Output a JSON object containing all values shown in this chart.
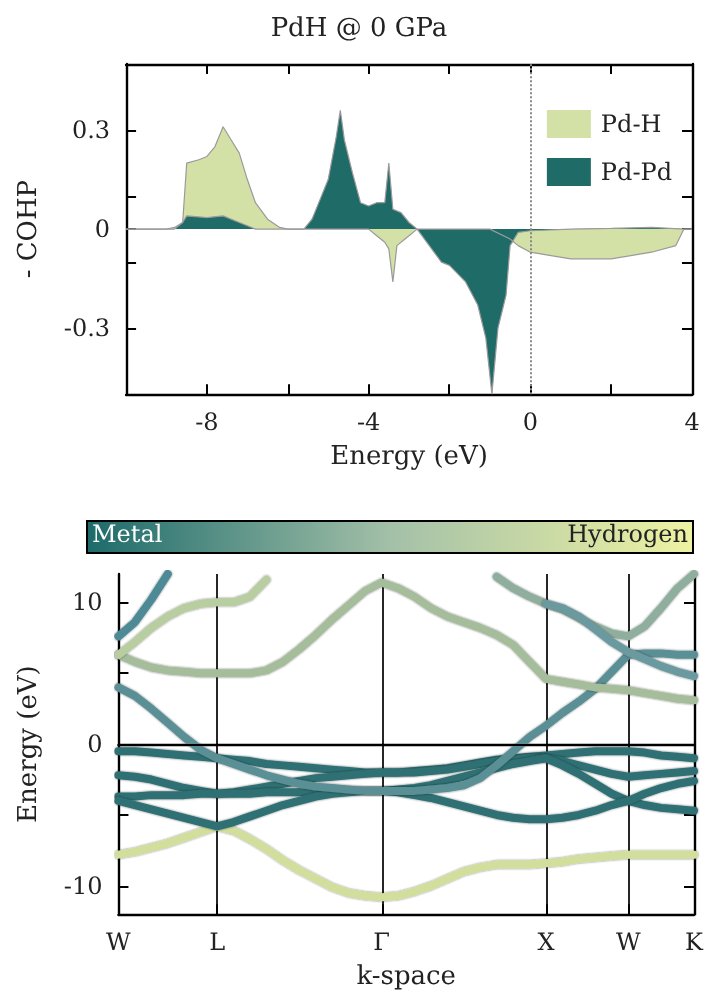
{
  "chart_data": [
    {
      "type": "area",
      "title": "PdH @ 0 GPa",
      "xlabel": "Energy (eV)",
      "ylabel": "- COHP",
      "xlim": [
        -10,
        4
      ],
      "xticks": [
        -8,
        {
          "value": -6,
          "label": null
        },
        -4,
        {
          "value": -2,
          "label": null
        },
        0,
        {
          "value": 2,
          "label": null
        },
        4
      ],
      "ylim": [
        -0.5,
        0.5
      ],
      "yticks": [
        -0.3,
        {
          "value": -0.1,
          "label": null
        },
        0,
        {
          "value": 0.1,
          "label": null
        },
        0.3
      ],
      "grid": false,
      "legend": "top right",
      "marker": "none",
      "ref_lines": [
        {
          "axis": "x",
          "value": 0,
          "label": null,
          "color": "#888888",
          "line_style": "dotted"
        }
      ],
      "series": [
        {
          "name": "Pd-H",
          "color": "#d3e0a6",
          "x": [
            -10,
            -9,
            -8.8,
            -8.6,
            -8.5,
            -8.2,
            -8.0,
            -7.8,
            -7.6,
            -7.4,
            -7.2,
            -7.0,
            -6.8,
            -6.5,
            -6.2,
            -6.0,
            -5.5,
            -4.0,
            -3.8,
            -3.6,
            -3.5,
            -3.4,
            -3.3,
            -3.1,
            -2.8,
            -1.0,
            -0.5,
            -0.3,
            0,
            1,
            2,
            3,
            3.6,
            3.8,
            4
          ],
          "values": [
            0,
            0,
            0.005,
            0.02,
            0.2,
            0.21,
            0.22,
            0.25,
            0.31,
            0.27,
            0.23,
            0.15,
            0.08,
            0.03,
            0.005,
            0,
            0,
            0,
            -0.02,
            -0.04,
            -0.06,
            -0.16,
            -0.05,
            -0.03,
            0,
            0,
            -0.03,
            -0.05,
            -0.07,
            -0.09,
            -0.09,
            -0.07,
            -0.05,
            0,
            0
          ]
        },
        {
          "name": "Pd-Pd",
          "color": "#1f6b68",
          "x": [
            -10,
            -8.8,
            -8.6,
            -8.5,
            -8.0,
            -7.6,
            -7.2,
            -7.0,
            -6.8,
            -5.6,
            -5.4,
            -5.2,
            -5.0,
            -4.8,
            -4.7,
            -4.6,
            -4.4,
            -4.2,
            -4.0,
            -3.8,
            -3.6,
            -3.5,
            -3.4,
            -3.2,
            -3.0,
            -2.8,
            -2.5,
            -2.2,
            -2.0,
            -1.6,
            -1.3,
            -1.1,
            -0.95,
            -0.8,
            -0.6,
            -0.5,
            -0.3,
            0,
            1,
            2,
            3,
            3.8,
            4
          ],
          "values": [
            0,
            0,
            0.02,
            0.04,
            0.035,
            0.04,
            0.02,
            0.01,
            0,
            0,
            0.03,
            0.09,
            0.15,
            0.28,
            0.36,
            0.27,
            0.17,
            0.08,
            0.07,
            0.08,
            0.08,
            0.2,
            0.06,
            0.05,
            0.02,
            0,
            -0.05,
            -0.1,
            -0.11,
            -0.16,
            -0.23,
            -0.33,
            -0.5,
            -0.3,
            -0.2,
            -0.05,
            -0.01,
            -0.005,
            0,
            0.002,
            0.005,
            0,
            0
          ]
        }
      ]
    },
    {
      "type": "line",
      "xlabel": "k-space",
      "ylabel": "Energy (eV)",
      "categories": [
        "W",
        null,
        null,
        null,
        null,
        null,
        "L",
        null,
        null,
        null,
        null,
        null,
        null,
        null,
        null,
        null,
        "Γ",
        null,
        null,
        null,
        null,
        null,
        null,
        null,
        null,
        null,
        "X",
        null,
        null,
        null,
        null,
        "W",
        null,
        null,
        null,
        "K"
      ],
      "ylim": [
        -12,
        12
      ],
      "yticks": [
        -10,
        {
          "value": -5,
          "label": null
        },
        0,
        {
          "value": 5,
          "label": null
        },
        10
      ],
      "annotations": [
        "Metal",
        "Hydrogen"
      ],
      "grid": "x",
      "legend": false,
      "marker": "none",
      "ref_lines": [
        {
          "axis": "y",
          "value": 0,
          "label": null,
          "color": "#000000"
        }
      ],
      "series": [
        {
          "color": "#d2df9c",
          "values": [
            -7.8,
            -7.6,
            -7.3,
            -7.0,
            -6.6,
            -6.2,
            -5.8,
            -6.1,
            -6.7,
            -7.4,
            -8.2,
            -8.9,
            -9.5,
            -10.1,
            -10.5,
            -10.7,
            -10.8,
            -10.7,
            -10.4,
            -10.0,
            -9.5,
            -9.0,
            -8.7,
            -8.5,
            -8.5,
            -8.5,
            -8.4,
            -8.3,
            -8.1,
            -8.0,
            -7.9,
            -7.8,
            -7.8,
            -7.8,
            -7.8,
            -7.8
          ]
        },
        {
          "color": "#2e6f73",
          "values": [
            -0.5,
            -0.5,
            -0.6,
            -0.7,
            -0.8,
            -0.9,
            -1.0,
            -1.1,
            -1.2,
            -1.4,
            -1.5,
            -1.6,
            -1.7,
            -1.8,
            -1.9,
            -2.0,
            -2.0,
            -2.0,
            -1.9,
            -1.8,
            -1.7,
            -1.5,
            -1.3,
            -1.1,
            -1.0,
            -0.9,
            -0.8,
            -0.7,
            -0.6,
            -0.5,
            -0.5,
            -0.5,
            -0.6,
            -0.8,
            -0.9,
            -1.0
          ]
        },
        {
          "color": "#2e6f73",
          "values": [
            -2.2,
            -2.3,
            -2.5,
            -2.8,
            -3.1,
            -3.3,
            -3.5,
            -3.4,
            -3.2,
            -3.0,
            -2.8,
            -2.6,
            -2.4,
            -2.3,
            -2.2,
            -2.1,
            -2.0,
            -2.0,
            -2.0,
            -1.9,
            -1.8,
            -1.6,
            -1.4,
            -1.2,
            -1.1,
            -1.0,
            -1.0,
            -1.2,
            -1.5,
            -1.8,
            -2.1,
            -2.3,
            -2.2,
            -2.1,
            -2.0,
            -1.9
          ]
        },
        {
          "color": "#2e6f73",
          "values": [
            -3.7,
            -3.7,
            -3.6,
            -3.6,
            -3.6,
            -3.5,
            -3.5,
            -3.5,
            -3.5,
            -3.4,
            -3.4,
            -3.4,
            -3.4,
            -3.3,
            -3.3,
            -3.3,
            -3.3,
            -3.2,
            -3.1,
            -2.9,
            -2.6,
            -2.3,
            -2.0,
            -1.7,
            -1.4,
            -1.2,
            -1.0,
            -1.5,
            -2.1,
            -2.8,
            -3.5,
            -4.0,
            -4.3,
            -4.5,
            -4.6,
            -4.7
          ]
        },
        {
          "color": "#2e6f73",
          "values": [
            -4.0,
            -4.3,
            -4.6,
            -4.9,
            -5.2,
            -5.5,
            -5.8,
            -5.5,
            -5.1,
            -4.7,
            -4.3,
            -4.0,
            -3.7,
            -3.5,
            -3.4,
            -3.3,
            -3.3,
            -3.4,
            -3.6,
            -3.8,
            -4.1,
            -4.4,
            -4.7,
            -5.0,
            -5.2,
            -5.3,
            -5.3,
            -5.2,
            -5.0,
            -4.7,
            -4.3,
            -4.0,
            -3.5,
            -3.1,
            -2.8,
            -2.6
          ]
        },
        {
          "color": "#5a8f96",
          "values": [
            4.0,
            3.4,
            2.5,
            1.5,
            0.5,
            -0.4,
            -1.0,
            -1.4,
            -1.8,
            -2.2,
            -2.5,
            -2.8,
            -3.0,
            -3.1,
            -3.2,
            -3.3,
            -3.3,
            -3.3,
            -3.3,
            -3.2,
            -3.1,
            -2.9,
            -2.4,
            -1.5,
            -0.5,
            0.5,
            1.3,
            2.2,
            3.0,
            3.9,
            5.1,
            6.3,
            6.4,
            6.4,
            6.3,
            6.3
          ]
        },
        {
          "color": "#a6bd9c",
          "values": [
            6.3,
            5.8,
            5.4,
            5.2,
            5.1,
            5.0,
            5.0,
            5.0,
            5.0,
            5.2,
            5.8,
            6.7,
            7.7,
            8.8,
            9.8,
            10.8,
            11.4,
            11.0,
            10.4,
            9.6,
            9.0,
            8.6,
            8.2,
            7.7,
            7.0,
            5.8,
            4.6,
            4.4,
            4.2,
            4.0,
            3.9,
            3.8,
            3.6,
            3.4,
            3.2,
            3.1
          ]
        },
        {
          "color": "#b8cea0",
          "values": [
            6.3,
            7.2,
            8.2,
            9.0,
            9.6,
            9.9,
            10.0,
            10.0,
            10.4,
            11.6,
            null,
            null,
            null,
            null,
            null,
            null,
            null,
            null,
            null,
            null,
            null,
            null,
            null,
            null,
            null,
            null,
            null,
            null,
            null,
            null,
            null,
            null,
            null,
            null,
            null,
            null
          ]
        },
        {
          "color": "#4d8a96",
          "values": [
            7.6,
            8.6,
            10.2,
            12.0,
            null,
            null,
            null,
            null,
            null,
            null,
            null,
            null,
            null,
            null,
            null,
            null,
            null,
            null,
            null,
            null,
            null,
            null,
            null,
            null,
            null,
            null,
            null,
            null,
            null,
            null,
            null,
            null,
            null,
            null,
            null,
            null
          ]
        },
        {
          "color": "#8fae9e",
          "values": [
            null,
            null,
            null,
            null,
            null,
            null,
            null,
            null,
            null,
            null,
            null,
            null,
            null,
            null,
            null,
            null,
            null,
            null,
            null,
            null,
            null,
            null,
            null,
            11.8,
            11.0,
            10.4,
            9.9,
            9.5,
            8.9,
            8.3,
            7.8,
            7.6,
            8.3,
            9.6,
            11.0,
            12.0
          ]
        },
        {
          "color": "#6b9aa0",
          "values": [
            null,
            null,
            null,
            null,
            null,
            null,
            null,
            null,
            null,
            null,
            null,
            null,
            null,
            null,
            null,
            null,
            null,
            null,
            null,
            null,
            null,
            null,
            null,
            null,
            null,
            null,
            9.9,
            9.6,
            9.0,
            8.1,
            7.2,
            6.5,
            6.0,
            5.5,
            5.1,
            4.8
          ]
        }
      ]
    }
  ]
}
